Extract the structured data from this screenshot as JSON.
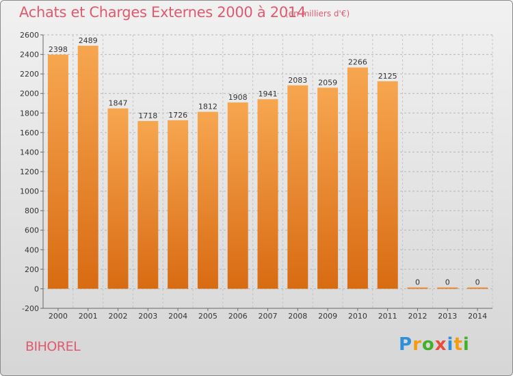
{
  "title": "Achats et Charges Externes 2000 à 2014",
  "subtitle": "(en milliers d'€)",
  "city": "BIHOREL",
  "logo": {
    "letters": [
      "P",
      "r",
      "o",
      "x",
      "i",
      "t",
      "i"
    ],
    "colors": [
      "#2f8fd8",
      "#f39c12",
      "#43b02a",
      "#e74c3c",
      "#2f8fd8",
      "#f39c12",
      "#43b02a"
    ]
  },
  "colors": {
    "title": "#e05a6e",
    "bar_light": "#f7a650",
    "bar_dark": "#d86b12"
  },
  "chart_data": {
    "type": "bar",
    "categories": [
      "2000",
      "2001",
      "2002",
      "2003",
      "2004",
      "2005",
      "2006",
      "2007",
      "2008",
      "2009",
      "2010",
      "2011",
      "2012",
      "2013",
      "2014"
    ],
    "values": [
      2398,
      2489,
      1847,
      1718,
      1726,
      1812,
      1908,
      1941,
      2083,
      2059,
      2266,
      2125,
      0,
      0,
      0
    ],
    "data_labels": [
      "2398",
      "2489",
      "1847",
      "1718",
      "1726",
      "1812",
      "1908",
      "1941",
      "2083",
      "2059",
      "2266",
      "2125",
      "0",
      "0",
      "0"
    ],
    "ylim": [
      -200,
      2600
    ],
    "yticks": [
      -200,
      0,
      200,
      400,
      600,
      800,
      1000,
      1200,
      1400,
      1600,
      1800,
      2000,
      2200,
      2400,
      2600
    ],
    "ytick_labels": [
      "-200",
      "0",
      "200",
      "400",
      "600",
      "800",
      "1000",
      "1200",
      "1400",
      "1600",
      "1800",
      "2000",
      "2200",
      "2400",
      "2600"
    ],
    "grid": "horizontal dashed"
  }
}
